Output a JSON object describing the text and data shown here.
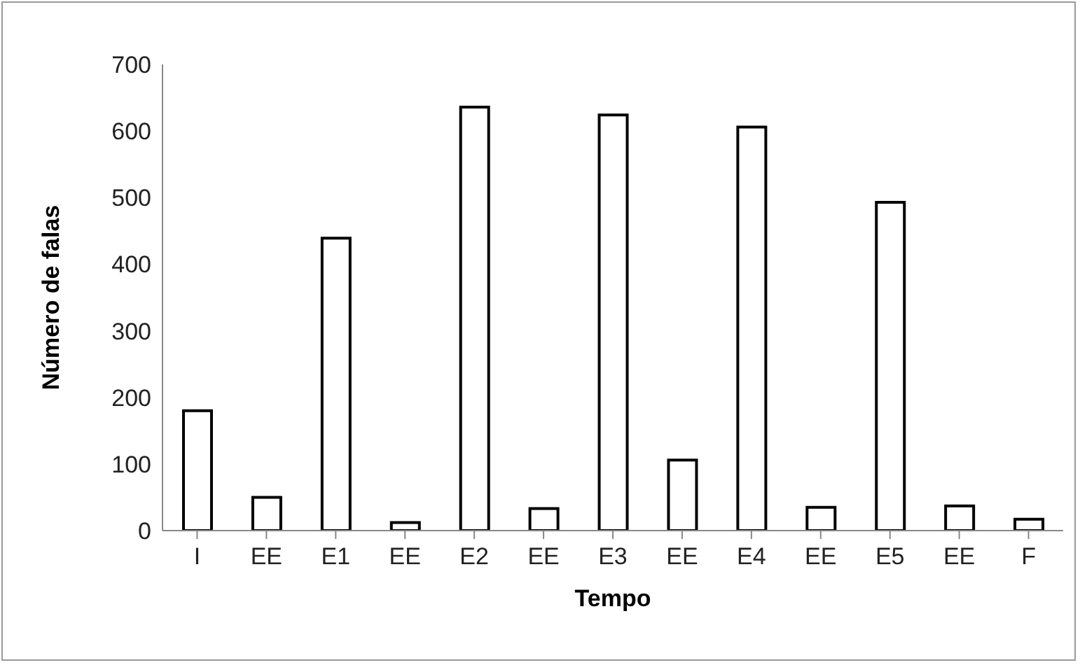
{
  "chart_data": {
    "type": "bar",
    "xlabel": "Tempo",
    "ylabel": "Número de falas",
    "categories": [
      "I",
      "EE",
      "E1",
      "EE",
      "E2",
      "EE",
      "E3",
      "EE",
      "E4",
      "EE",
      "E5",
      "EE",
      "F"
    ],
    "values": [
      180,
      50,
      439,
      12,
      636,
      33,
      624,
      106,
      606,
      35,
      493,
      37,
      17
    ],
    "color": "#ffffff",
    "ylim": [
      0,
      700
    ],
    "yticks": [
      0,
      100,
      200,
      300,
      400,
      500,
      600,
      700
    ]
  }
}
